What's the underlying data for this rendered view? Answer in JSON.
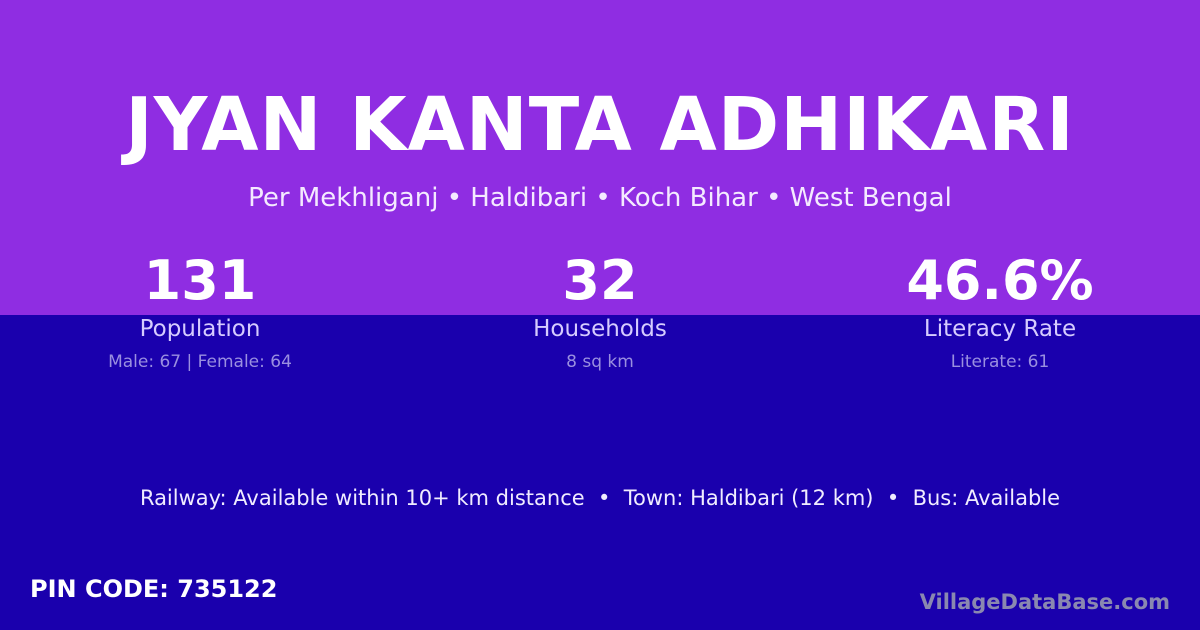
{
  "header": {
    "title": "JYAN KANTA ADHIKARI",
    "location": "Per Mekhliganj • Haldibari • Koch Bihar • West Bengal"
  },
  "stats": [
    {
      "value": "131",
      "label": "Population",
      "detail": "Male: 67 | Female: 64"
    },
    {
      "value": "32",
      "label": "Households",
      "detail": "8 sq km"
    },
    {
      "value": "46.6%",
      "label": "Literacy Rate",
      "detail": "Literate: 61"
    }
  ],
  "info": "Railway: Available within 10+ km distance  •  Town: Haldibari (12 km)  •  Bus: Available",
  "pin": "PIN CODE: 735122",
  "brand": "VillageDataBase.com",
  "colors": {
    "top": "#8f2de2",
    "bottom": "#1a00ad"
  }
}
